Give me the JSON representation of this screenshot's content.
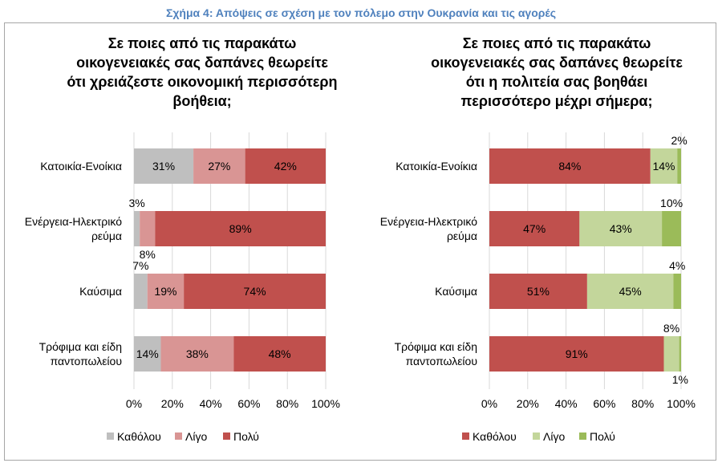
{
  "figure_title": "Σχήμα 4: Απόψεις σε σχέση με τον πόλεμο στην Ουκρανία και τις αγορές",
  "chart_data": [
    {
      "type": "bar",
      "orientation": "horizontal",
      "stacked": "100%",
      "title_lines": [
        "Σε ποιες από τις παρακάτω",
        "οικογενειακές σας δαπάνες θεωρείτε",
        "ότι χρειάζεστε οικονομική περισσότερη",
        "βοήθεια;"
      ],
      "categories": [
        [
          "Κατοικία-Ενοίκια"
        ],
        [
          "Ενέργεια-Ηλεκτρικό",
          "ρεύμα"
        ],
        [
          "Καύσιμα"
        ],
        [
          "Τρόφιμα και είδη",
          "παντοπωλείου"
        ]
      ],
      "series": [
        {
          "name": "Καθόλου",
          "color": "#bfbfbf",
          "values": [
            31,
            3,
            7,
            14
          ]
        },
        {
          "name": "Λίγο",
          "color": "#d99594",
          "values": [
            27,
            8,
            19,
            38
          ]
        },
        {
          "name": "Πολύ",
          "color": "#c0504d",
          "values": [
            42,
            89,
            74,
            48
          ]
        }
      ],
      "xticks": [
        "0%",
        "20%",
        "40%",
        "60%",
        "80%",
        "100%"
      ],
      "xlim": [
        0,
        100
      ],
      "grid": true,
      "legend": "bottom"
    },
    {
      "type": "bar",
      "orientation": "horizontal",
      "stacked": "100%",
      "title_lines": [
        "Σε ποιες από τις παρακάτω",
        "οικογενειακές σας δαπάνες θεωρείτε",
        "ότι η πολιτεία σας βοηθάει",
        "περισσότερο μέχρι σήμερα;"
      ],
      "categories": [
        [
          "Κατοικία-Ενοίκια"
        ],
        [
          "Ενέργεια-Ηλεκτρικό",
          "ρεύμα"
        ],
        [
          "Καύσιμα"
        ],
        [
          "Τρόφιμα και είδη",
          "παντοπωλείου"
        ]
      ],
      "series": [
        {
          "name": "Καθόλου",
          "color": "#c0504d",
          "values": [
            84,
            47,
            51,
            91
          ]
        },
        {
          "name": "Λίγο",
          "color": "#c3d69b",
          "values": [
            14,
            43,
            45,
            8
          ]
        },
        {
          "name": "Πολύ",
          "color": "#9bbb59",
          "values": [
            2,
            10,
            4,
            1
          ]
        }
      ],
      "xticks": [
        "0%",
        "20%",
        "40%",
        "60%",
        "80%",
        "100%"
      ],
      "xlim": [
        0,
        100
      ],
      "grid": true,
      "legend": "bottom"
    }
  ]
}
